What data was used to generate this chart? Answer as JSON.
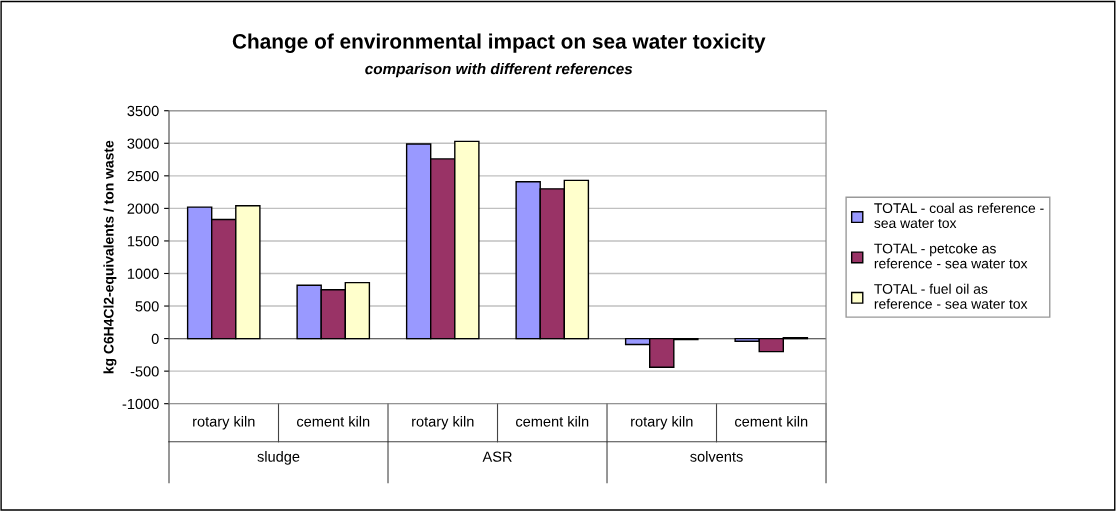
{
  "chart_data": {
    "type": "bar",
    "title": "Change of environmental impact on sea water toxicity",
    "subtitle": "comparison with different references",
    "ylabel": "kg C6H4Cl2-equivalents / ton waste",
    "categories": [
      "rotary kiln",
      "cement kiln",
      "rotary kiln",
      "cement kiln",
      "rotary kiln",
      "cement kiln"
    ],
    "annotations": [
      "sludge",
      "ASR",
      "solvents"
    ],
    "series": [
      {
        "name": "TOTAL - coal as reference - sea water tox",
        "color": "#9999ff",
        "values": [
          2020,
          820,
          2990,
          2410,
          -90,
          -40
        ]
      },
      {
        "name": "TOTAL - petcoke as reference - sea water tox",
        "color": "#993366",
        "values": [
          1830,
          750,
          2760,
          2300,
          -440,
          -200
        ]
      },
      {
        "name": "TOTAL - fuel oil as reference - sea water tox",
        "color": "#ffffcc",
        "values": [
          2040,
          860,
          3030,
          2430,
          -15,
          15
        ]
      }
    ],
    "ylim": [
      -1000,
      3500
    ],
    "yticks": [
      -1000,
      -500,
      0,
      500,
      1000,
      1500,
      2000,
      2500,
      3000,
      3500
    ],
    "grid": "y",
    "legend": "right"
  }
}
